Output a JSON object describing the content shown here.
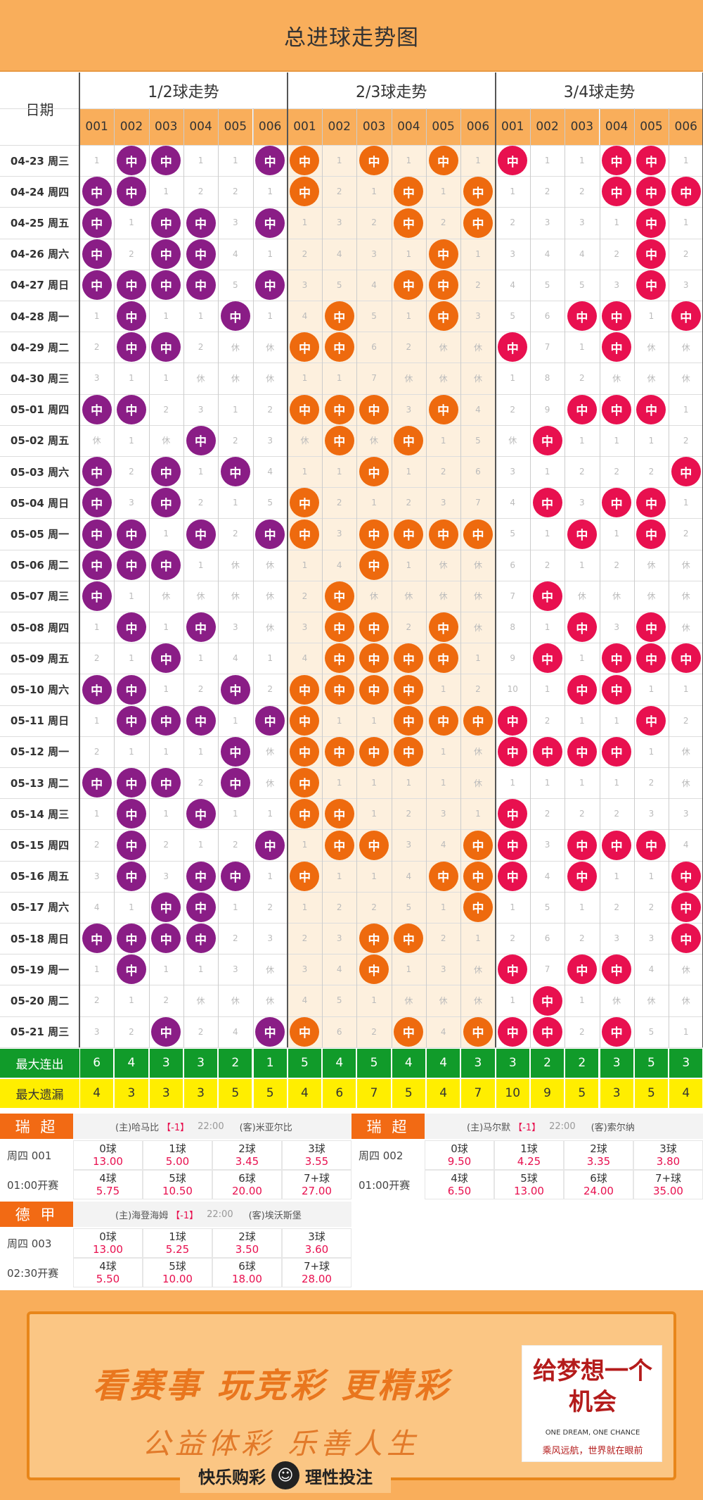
{
  "header": {
    "title": "总进球走势图"
  },
  "table": {
    "date_header": "日期",
    "groups": [
      "1/2球走势",
      "2/3球走势",
      "3/4球走势"
    ],
    "codes": [
      "001",
      "002",
      "003",
      "004",
      "005",
      "006"
    ],
    "hit_label": "中",
    "colors": [
      "#8a1d86",
      "#ee6a0e",
      "#e8104f"
    ],
    "rows": [
      {
        "date": "04-23 周三",
        "g": [
          [
            "1",
            "中",
            "中",
            "1",
            "1",
            "中"
          ],
          [
            "中",
            "1",
            "中",
            "1",
            "中",
            "1"
          ],
          [
            "中",
            "1",
            "1",
            "中",
            "中",
            "1"
          ]
        ]
      },
      {
        "date": "04-24 周四",
        "g": [
          [
            "中",
            "中",
            "1",
            "2",
            "2",
            "1"
          ],
          [
            "中",
            "2",
            "1",
            "中",
            "1",
            "中"
          ],
          [
            "1",
            "2",
            "2",
            "中",
            "中",
            "中"
          ]
        ]
      },
      {
        "date": "04-25 周五",
        "g": [
          [
            "中",
            "1",
            "中",
            "中",
            "3",
            "中"
          ],
          [
            "1",
            "3",
            "2",
            "中",
            "2",
            "中"
          ],
          [
            "2",
            "3",
            "3",
            "1",
            "中",
            "1"
          ]
        ]
      },
      {
        "date": "04-26 周六",
        "g": [
          [
            "中",
            "2",
            "中",
            "中",
            "4",
            "1"
          ],
          [
            "2",
            "4",
            "3",
            "1",
            "中",
            "1"
          ],
          [
            "3",
            "4",
            "4",
            "2",
            "中",
            "2"
          ]
        ]
      },
      {
        "date": "04-27 周日",
        "g": [
          [
            "中",
            "中",
            "中",
            "中",
            "5",
            "中"
          ],
          [
            "3",
            "5",
            "4",
            "中",
            "中",
            "2"
          ],
          [
            "4",
            "5",
            "5",
            "3",
            "中",
            "3"
          ]
        ]
      },
      {
        "date": "04-28 周一",
        "g": [
          [
            "1",
            "中",
            "1",
            "1",
            "中",
            "1"
          ],
          [
            "4",
            "中",
            "5",
            "1",
            "中",
            "3"
          ],
          [
            "5",
            "6",
            "中",
            "中",
            "1",
            "中"
          ]
        ]
      },
      {
        "date": "04-29 周二",
        "g": [
          [
            "2",
            "中",
            "中",
            "2",
            "休",
            "休"
          ],
          [
            "中",
            "中",
            "6",
            "2",
            "休",
            "休"
          ],
          [
            "中",
            "7",
            "1",
            "中",
            "休",
            "休"
          ]
        ]
      },
      {
        "date": "04-30 周三",
        "g": [
          [
            "3",
            "1",
            "1",
            "休",
            "休",
            "休"
          ],
          [
            "1",
            "1",
            "7",
            "休",
            "休",
            "休"
          ],
          [
            "1",
            "8",
            "2",
            "休",
            "休",
            "休"
          ]
        ]
      },
      {
        "date": "05-01 周四",
        "g": [
          [
            "中",
            "中",
            "2",
            "3",
            "1",
            "2"
          ],
          [
            "中",
            "中",
            "中",
            "3",
            "中",
            "4"
          ],
          [
            "2",
            "9",
            "中",
            "中",
            "中",
            "1"
          ]
        ]
      },
      {
        "date": "05-02 周五",
        "g": [
          [
            "休",
            "1",
            "休",
            "中",
            "2",
            "3"
          ],
          [
            "休",
            "中",
            "休",
            "中",
            "1",
            "5"
          ],
          [
            "休",
            "中",
            "1",
            "1",
            "1",
            "2"
          ]
        ]
      },
      {
        "date": "05-03 周六",
        "g": [
          [
            "中",
            "2",
            "中",
            "1",
            "中",
            "4"
          ],
          [
            "1",
            "1",
            "中",
            "1",
            "2",
            "6"
          ],
          [
            "3",
            "1",
            "2",
            "2",
            "2",
            "中"
          ]
        ]
      },
      {
        "date": "05-04 周日",
        "g": [
          [
            "中",
            "3",
            "中",
            "2",
            "1",
            "5"
          ],
          [
            "中",
            "2",
            "1",
            "2",
            "3",
            "7"
          ],
          [
            "4",
            "中",
            "3",
            "中",
            "中",
            "1"
          ]
        ]
      },
      {
        "date": "05-05 周一",
        "g": [
          [
            "中",
            "中",
            "1",
            "中",
            "2",
            "中"
          ],
          [
            "中",
            "3",
            "中",
            "中",
            "中",
            "中"
          ],
          [
            "5",
            "1",
            "中",
            "1",
            "中",
            "2"
          ]
        ]
      },
      {
        "date": "05-06 周二",
        "g": [
          [
            "中",
            "中",
            "中",
            "1",
            "休",
            "休"
          ],
          [
            "1",
            "4",
            "中",
            "1",
            "休",
            "休"
          ],
          [
            "6",
            "2",
            "1",
            "2",
            "休",
            "休"
          ]
        ]
      },
      {
        "date": "05-07 周三",
        "g": [
          [
            "中",
            "1",
            "休",
            "休",
            "休",
            "休"
          ],
          [
            "2",
            "中",
            "休",
            "休",
            "休",
            "休"
          ],
          [
            "7",
            "中",
            "休",
            "休",
            "休",
            "休"
          ]
        ]
      },
      {
        "date": "05-08 周四",
        "g": [
          [
            "1",
            "中",
            "1",
            "中",
            "3",
            "休"
          ],
          [
            "3",
            "中",
            "中",
            "2",
            "中",
            "休"
          ],
          [
            "8",
            "1",
            "中",
            "3",
            "中",
            "休"
          ]
        ]
      },
      {
        "date": "05-09 周五",
        "g": [
          [
            "2",
            "1",
            "中",
            "1",
            "4",
            "1"
          ],
          [
            "4",
            "中",
            "中",
            "中",
            "中",
            "1"
          ],
          [
            "9",
            "中",
            "1",
            "中",
            "中",
            "中"
          ]
        ]
      },
      {
        "date": "05-10 周六",
        "g": [
          [
            "中",
            "中",
            "1",
            "2",
            "中",
            "2"
          ],
          [
            "中",
            "中",
            "中",
            "中",
            "1",
            "2"
          ],
          [
            "10",
            "1",
            "中",
            "中",
            "1",
            "1"
          ]
        ]
      },
      {
        "date": "05-11 周日",
        "g": [
          [
            "1",
            "中",
            "中",
            "中",
            "1",
            "中"
          ],
          [
            "中",
            "1",
            "1",
            "中",
            "中",
            "中"
          ],
          [
            "中",
            "2",
            "1",
            "1",
            "中",
            "2"
          ]
        ]
      },
      {
        "date": "05-12 周一",
        "g": [
          [
            "2",
            "1",
            "1",
            "1",
            "中",
            "休"
          ],
          [
            "中",
            "中",
            "中",
            "中",
            "1",
            "休"
          ],
          [
            "中",
            "中",
            "中",
            "中",
            "1",
            "休"
          ]
        ]
      },
      {
        "date": "05-13 周二",
        "g": [
          [
            "中",
            "中",
            "中",
            "2",
            "中",
            "休"
          ],
          [
            "中",
            "1",
            "1",
            "1",
            "1",
            "休"
          ],
          [
            "1",
            "1",
            "1",
            "1",
            "2",
            "休"
          ]
        ]
      },
      {
        "date": "05-14 周三",
        "g": [
          [
            "1",
            "中",
            "1",
            "中",
            "1",
            "1"
          ],
          [
            "中",
            "中",
            "1",
            "2",
            "3",
            "1"
          ],
          [
            "中",
            "2",
            "2",
            "2",
            "3",
            "3"
          ]
        ]
      },
      {
        "date": "05-15 周四",
        "g": [
          [
            "2",
            "中",
            "2",
            "1",
            "2",
            "中"
          ],
          [
            "1",
            "中",
            "中",
            "3",
            "4",
            "中"
          ],
          [
            "中",
            "3",
            "中",
            "中",
            "中",
            "4"
          ]
        ]
      },
      {
        "date": "05-16 周五",
        "g": [
          [
            "3",
            "中",
            "3",
            "中",
            "中",
            "1"
          ],
          [
            "中",
            "1",
            "1",
            "4",
            "中",
            "中"
          ],
          [
            "中",
            "4",
            "中",
            "1",
            "1",
            "中"
          ]
        ]
      },
      {
        "date": "05-17 周六",
        "g": [
          [
            "4",
            "1",
            "中",
            "中",
            "1",
            "2"
          ],
          [
            "1",
            "2",
            "2",
            "5",
            "1",
            "中"
          ],
          [
            "1",
            "5",
            "1",
            "2",
            "2",
            "中"
          ]
        ]
      },
      {
        "date": "05-18 周日",
        "g": [
          [
            "中",
            "中",
            "中",
            "中",
            "2",
            "3"
          ],
          [
            "2",
            "3",
            "中",
            "中",
            "2",
            "1"
          ],
          [
            "2",
            "6",
            "2",
            "3",
            "3",
            "中"
          ]
        ]
      },
      {
        "date": "05-19 周一",
        "g": [
          [
            "1",
            "中",
            "1",
            "1",
            "3",
            "休"
          ],
          [
            "3",
            "4",
            "中",
            "1",
            "3",
            "休"
          ],
          [
            "中",
            "7",
            "中",
            "中",
            "4",
            "休"
          ]
        ]
      },
      {
        "date": "05-20 周二",
        "g": [
          [
            "2",
            "1",
            "2",
            "休",
            "休",
            "休"
          ],
          [
            "4",
            "5",
            "1",
            "休",
            "休",
            "休"
          ],
          [
            "1",
            "中",
            "1",
            "休",
            "休",
            "休"
          ]
        ]
      },
      {
        "date": "05-21 周三",
        "g": [
          [
            "3",
            "2",
            "中",
            "2",
            "4",
            "中"
          ],
          [
            "中",
            "6",
            "2",
            "中",
            "4",
            "中"
          ],
          [
            "中",
            "中",
            "2",
            "中",
            "5",
            "1"
          ]
        ]
      }
    ],
    "max_streak_label": "最大连出",
    "max_streak": [
      "6",
      "4",
      "3",
      "3",
      "2",
      "1",
      "5",
      "4",
      "5",
      "4",
      "4",
      "3",
      "3",
      "2",
      "2",
      "3",
      "5",
      "3"
    ],
    "max_miss_label": "最大遗漏",
    "max_miss": [
      "4",
      "3",
      "3",
      "3",
      "5",
      "5",
      "4",
      "6",
      "7",
      "5",
      "4",
      "7",
      "10",
      "9",
      "5",
      "3",
      "5",
      "4"
    ]
  },
  "matches": [
    {
      "league": "瑞 超",
      "id": "周四 001",
      "time": "01:00开赛",
      "home": "(主)哈马比",
      "handicap": "【-1】",
      "kick": "22:00",
      "away": "(客)米亚尔比",
      "odds": [
        [
          "0球",
          "13.00"
        ],
        [
          "1球",
          "5.00"
        ],
        [
          "2球",
          "3.45"
        ],
        [
          "3球",
          "3.55"
        ],
        [
          "4球",
          "5.75"
        ],
        [
          "5球",
          "10.50"
        ],
        [
          "6球",
          "20.00"
        ],
        [
          "7+球",
          "27.00"
        ]
      ]
    },
    {
      "league": "瑞 超",
      "id": "周四 002",
      "time": "01:00开赛",
      "home": "(主)马尔默",
      "handicap": "【-1】",
      "kick": "22:00",
      "away": "(客)索尔纳",
      "odds": [
        [
          "0球",
          "9.50"
        ],
        [
          "1球",
          "4.25"
        ],
        [
          "2球",
          "3.35"
        ],
        [
          "3球",
          "3.80"
        ],
        [
          "4球",
          "6.50"
        ],
        [
          "5球",
          "13.00"
        ],
        [
          "6球",
          "24.00"
        ],
        [
          "7+球",
          "35.00"
        ]
      ]
    },
    {
      "league": "德 甲",
      "id": "周四 003",
      "time": "02:30开赛",
      "home": "(主)海登海姆",
      "handicap": "【-1】",
      "kick": "22:00",
      "away": "(客)埃沃斯堡",
      "odds": [
        [
          "0球",
          "13.00"
        ],
        [
          "1球",
          "5.25"
        ],
        [
          "2球",
          "3.50"
        ],
        [
          "3球",
          "3.60"
        ],
        [
          "4球",
          "5.50"
        ],
        [
          "5球",
          "10.00"
        ],
        [
          "6球",
          "18.00"
        ],
        [
          "7+球",
          "28.00"
        ]
      ]
    }
  ],
  "banner": {
    "slogan1": "看赛事 玩竞彩 更精彩",
    "slogan2": "公益体彩 乐善人生",
    "dream_line": "给梦想一个机会",
    "dream_en": "ONE DREAM, ONE CHANCE",
    "dream_cn": "乘风远航，世界就在眼前",
    "footer_left": "快乐购彩",
    "footer_right": "理性投注"
  }
}
